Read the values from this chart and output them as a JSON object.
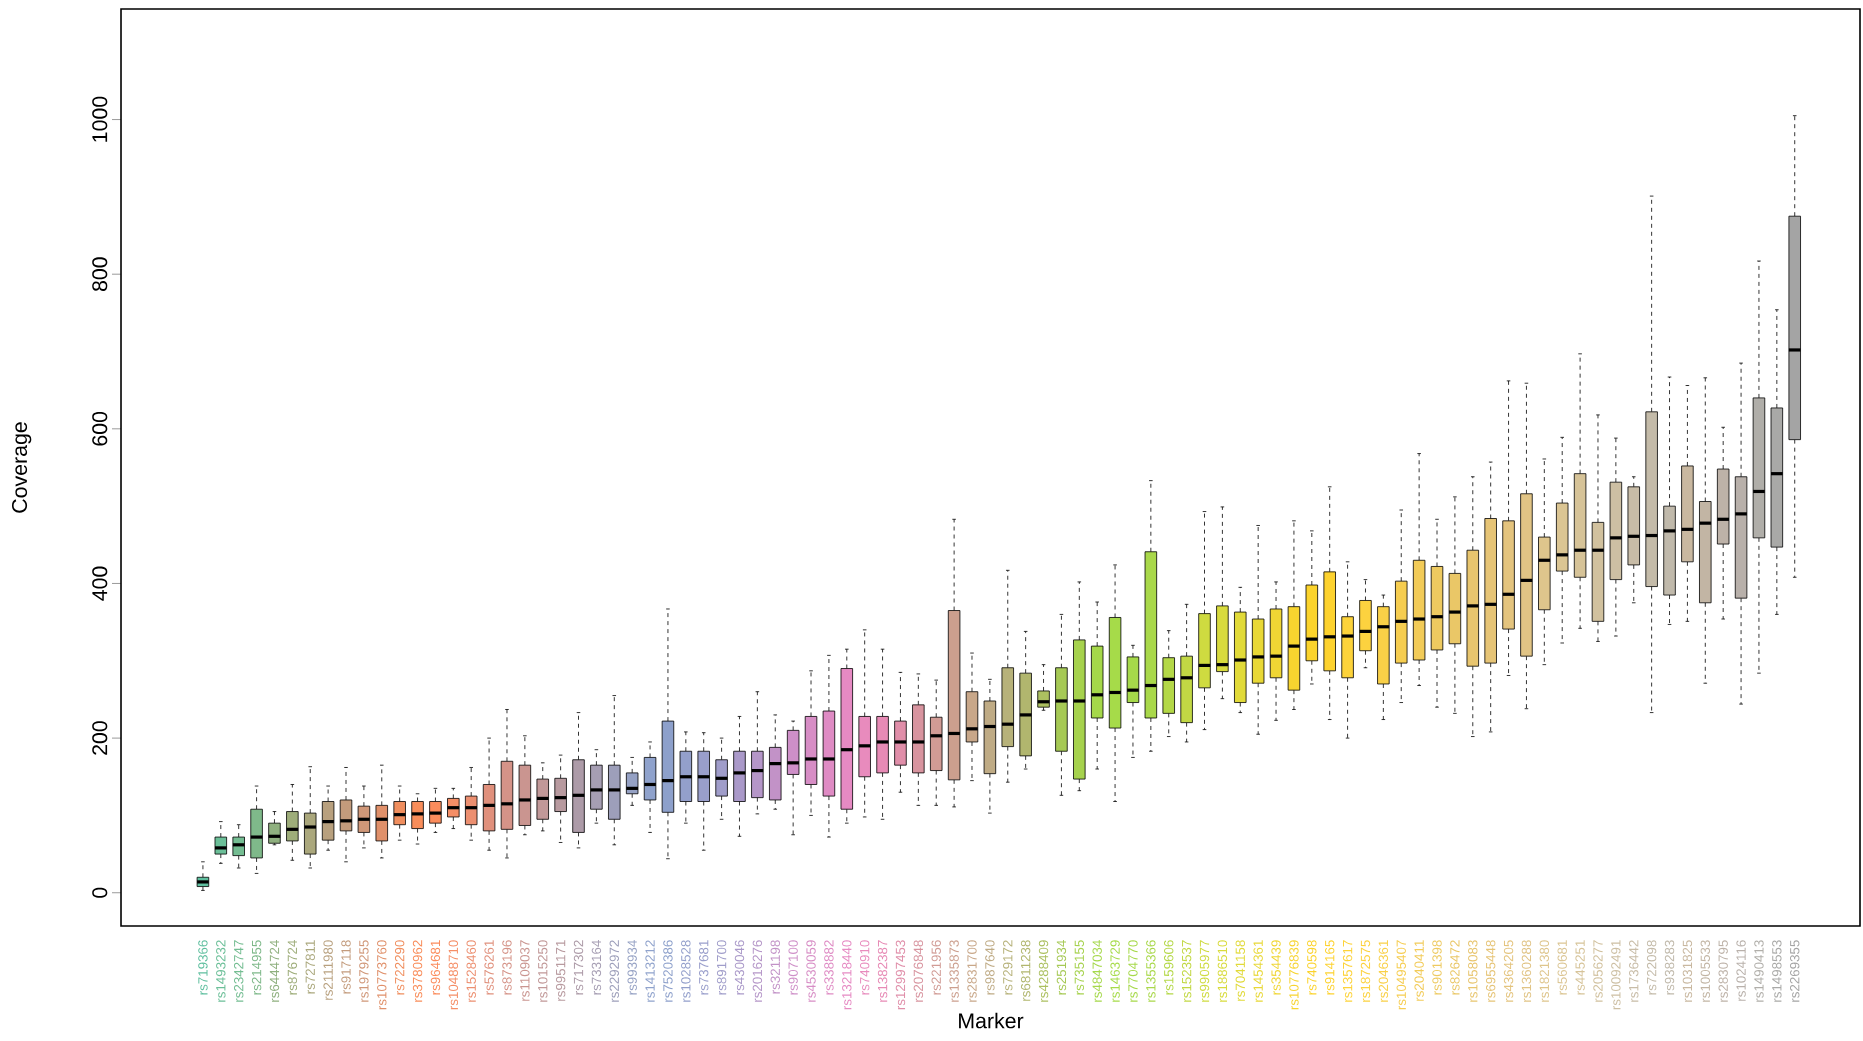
{
  "chart_data": {
    "type": "box",
    "xlabel": "Marker",
    "ylabel": "Coverage",
    "ylim": [
      -43,
      1143
    ],
    "yticks": [
      0,
      200,
      400,
      600,
      800,
      1000
    ],
    "grid": false,
    "categories": [
      "rs719366",
      "rs1493232",
      "rs2342747",
      "rs214955",
      "rs6444724",
      "rs876724",
      "rs727811",
      "rs2111980",
      "rs917118",
      "rs1979255",
      "rs10773760",
      "rs722290",
      "rs3780962",
      "rs964681",
      "rs10488710",
      "rs1528460",
      "rs576261",
      "rs873196",
      "rs1109037",
      "rs1015250",
      "rs9951171",
      "rs717302",
      "rs733164",
      "rs2292972",
      "rs993934",
      "rs1413212",
      "rs7520386",
      "rs1028528",
      "rs737681",
      "rs891700",
      "rs430046",
      "rs2016276",
      "rs321198",
      "rs907100",
      "rs4530059",
      "rs338882",
      "rs13218440",
      "rs740910",
      "rs1382387",
      "rs12997453",
      "rs2076848",
      "rs221956",
      "rs1335873",
      "rs2831700",
      "rs987640",
      "rs729172",
      "rs6811238",
      "rs4288409",
      "rs251934",
      "rs735155",
      "rs4847034",
      "rs1463729",
      "rs7704770",
      "rs1355366",
      "rs159606",
      "rs1523537",
      "rs9905977",
      "rs1886510",
      "rs7041158",
      "rs1454361",
      "rs354439",
      "rs10776839",
      "rs740598",
      "rs914165",
      "rs1357617",
      "rs1872575",
      "rs2046361",
      "rs10495407",
      "rs2040411",
      "rs901398",
      "rs826472",
      "rs1058083",
      "rs6955448",
      "rs4364205",
      "rs1360288",
      "rs1821380",
      "rs560681",
      "rs445251",
      "rs2056277",
      "rs10092491",
      "rs1736442",
      "rs722098",
      "rs938283",
      "rs1031825",
      "rs1005533",
      "rs2830795",
      "rs1024116",
      "rs1490413",
      "rs1498553",
      "rs2269355"
    ],
    "colors": [
      "#5fbf9f",
      "#6bbf98",
      "#74bd92",
      "#7fb98a",
      "#8fb07f",
      "#9ead7a",
      "#aaa77c",
      "#b8a07e",
      "#c39b7c",
      "#d09778",
      "#e0906a",
      "#f08e5e",
      "#f98d5a",
      "#fb8c5c",
      "#f58e66",
      "#ec8f70",
      "#e0907c",
      "#d59388",
      "#ca9590",
      "#c19898",
      "#b89a9f",
      "#ad9ba8",
      "#a69eb3",
      "#9d9fba",
      "#95a1c4",
      "#8fa2cc",
      "#8da0cb",
      "#939fcb",
      "#999ecb",
      "#a09dca",
      "#aa99c9",
      "#b596c8",
      "#c292c7",
      "#ce8fc8",
      "#d78dc5",
      "#df8bc4",
      "#e68ac3",
      "#e88bbd",
      "#e78ab5",
      "#e08ea9",
      "#d8949f",
      "#d19b95",
      "#cc9f8e",
      "#c8a789",
      "#bfab85",
      "#b7b27a",
      "#b1b66e",
      "#acc060",
      "#a6c955",
      "#a6d24d",
      "#a5d84a",
      "#a6db49",
      "#a6d94a",
      "#a9d84a",
      "#b4d847",
      "#c2d844",
      "#cfdb40",
      "#d8db3d",
      "#e1da39",
      "#e8d836",
      "#f0d634",
      "#f7d42f",
      "#fbd32c",
      "#fdd22e",
      "#fdd33a",
      "#fcd23f",
      "#f9d047",
      "#f6cd50",
      "#f2cb58",
      "#eeca60",
      "#eac767",
      "#e8c56e",
      "#e6c476",
      "#e4c47e",
      "#e1c485",
      "#dec58c",
      "#dbc593",
      "#d6c398",
      "#d1c19e",
      "#cdbfa3",
      "#c8bca7",
      "#c4bba9",
      "#c0b9ab",
      "#c9b8a0",
      "#c2b5a4",
      "#bdb2a8",
      "#b8b0aa",
      "#b0aea9",
      "#a9a9a7",
      "#a4a4a4"
    ],
    "boxes": [
      {
        "low": 3,
        "q1": 8,
        "median": 14,
        "q3": 20,
        "high": 40
      },
      {
        "low": 38,
        "q1": 50,
        "median": 58,
        "q3": 72,
        "high": 92
      },
      {
        "low": 32,
        "q1": 48,
        "median": 62,
        "q3": 72,
        "high": 88
      },
      {
        "low": 25,
        "q1": 45,
        "median": 72,
        "q3": 108,
        "high": 138
      },
      {
        "low": 62,
        "q1": 64,
        "median": 73,
        "q3": 90,
        "high": 105
      },
      {
        "low": 42,
        "q1": 67,
        "median": 82,
        "q3": 105,
        "high": 140
      },
      {
        "low": 32,
        "q1": 50,
        "median": 85,
        "q3": 103,
        "high": 163
      },
      {
        "low": 55,
        "q1": 68,
        "median": 92,
        "q3": 118,
        "high": 138
      },
      {
        "low": 40,
        "q1": 80,
        "median": 93,
        "q3": 120,
        "high": 162
      },
      {
        "low": 58,
        "q1": 78,
        "median": 95,
        "q3": 112,
        "high": 138
      },
      {
        "low": 45,
        "q1": 67,
        "median": 95,
        "q3": 113,
        "high": 165
      },
      {
        "low": 68,
        "q1": 88,
        "median": 101,
        "q3": 118,
        "high": 138
      },
      {
        "low": 63,
        "q1": 83,
        "median": 102,
        "q3": 118,
        "high": 128
      },
      {
        "low": 78,
        "q1": 90,
        "median": 103,
        "q3": 118,
        "high": 135
      },
      {
        "low": 83,
        "q1": 98,
        "median": 110,
        "q3": 122,
        "high": 135
      },
      {
        "low": 68,
        "q1": 88,
        "median": 110,
        "q3": 125,
        "high": 162
      },
      {
        "low": 55,
        "q1": 80,
        "median": 113,
        "q3": 140,
        "high": 200
      },
      {
        "low": 45,
        "q1": 82,
        "median": 115,
        "q3": 170,
        "high": 237
      },
      {
        "low": 75,
        "q1": 87,
        "median": 120,
        "q3": 165,
        "high": 203
      },
      {
        "low": 80,
        "q1": 95,
        "median": 122,
        "q3": 147,
        "high": 168
      },
      {
        "low": 65,
        "q1": 105,
        "median": 123,
        "q3": 148,
        "high": 178
      },
      {
        "low": 58,
        "q1": 78,
        "median": 126,
        "q3": 172,
        "high": 233
      },
      {
        "low": 90,
        "q1": 108,
        "median": 133,
        "q3": 165,
        "high": 185
      },
      {
        "low": 62,
        "q1": 95,
        "median": 133,
        "q3": 165,
        "high": 255
      },
      {
        "low": 113,
        "q1": 128,
        "median": 135,
        "q3": 155,
        "high": 175
      },
      {
        "low": 78,
        "q1": 120,
        "median": 140,
        "q3": 175,
        "high": 195
      },
      {
        "low": 44,
        "q1": 104,
        "median": 145,
        "q3": 222,
        "high": 367
      },
      {
        "low": 90,
        "q1": 118,
        "median": 150,
        "q3": 183,
        "high": 208
      },
      {
        "low": 55,
        "q1": 118,
        "median": 150,
        "q3": 183,
        "high": 207
      },
      {
        "low": 95,
        "q1": 125,
        "median": 148,
        "q3": 172,
        "high": 200
      },
      {
        "low": 73,
        "q1": 118,
        "median": 155,
        "q3": 183,
        "high": 228
      },
      {
        "low": 102,
        "q1": 123,
        "median": 158,
        "q3": 183,
        "high": 260
      },
      {
        "low": 108,
        "q1": 120,
        "median": 167,
        "q3": 188,
        "high": 230
      },
      {
        "low": 75,
        "q1": 153,
        "median": 168,
        "q3": 210,
        "high": 222
      },
      {
        "low": 100,
        "q1": 140,
        "median": 173,
        "q3": 228,
        "high": 287
      },
      {
        "low": 72,
        "q1": 125,
        "median": 173,
        "q3": 235,
        "high": 307
      },
      {
        "low": 90,
        "q1": 108,
        "median": 185,
        "q3": 290,
        "high": 315
      },
      {
        "low": 98,
        "q1": 150,
        "median": 190,
        "q3": 228,
        "high": 340
      },
      {
        "low": 95,
        "q1": 155,
        "median": 195,
        "q3": 228,
        "high": 315
      },
      {
        "low": 130,
        "q1": 165,
        "median": 195,
        "q3": 222,
        "high": 285
      },
      {
        "low": 113,
        "q1": 155,
        "median": 195,
        "q3": 243,
        "high": 283
      },
      {
        "low": 113,
        "q1": 158,
        "median": 203,
        "q3": 227,
        "high": 275
      },
      {
        "low": 111,
        "q1": 146,
        "median": 206,
        "q3": 365,
        "high": 483
      },
      {
        "low": 145,
        "q1": 195,
        "median": 212,
        "q3": 260,
        "high": 310
      },
      {
        "low": 103,
        "q1": 154,
        "median": 215,
        "q3": 248,
        "high": 276
      },
      {
        "low": 143,
        "q1": 189,
        "median": 218,
        "q3": 291,
        "high": 417
      },
      {
        "low": 160,
        "q1": 177,
        "median": 230,
        "q3": 284,
        "high": 338
      },
      {
        "low": 236,
        "q1": 240,
        "median": 247,
        "q3": 261,
        "high": 295
      },
      {
        "low": 126,
        "q1": 183,
        "median": 248,
        "q3": 291,
        "high": 360
      },
      {
        "low": 132,
        "q1": 147,
        "median": 248,
        "q3": 327,
        "high": 402
      },
      {
        "low": 160,
        "q1": 226,
        "median": 256,
        "q3": 319,
        "high": 376
      },
      {
        "low": 118,
        "q1": 213,
        "median": 259,
        "q3": 356,
        "high": 424
      },
      {
        "low": 175,
        "q1": 246,
        "median": 262,
        "q3": 305,
        "high": 320
      },
      {
        "low": 183,
        "q1": 226,
        "median": 268,
        "q3": 441,
        "high": 533
      },
      {
        "low": 202,
        "q1": 232,
        "median": 276,
        "q3": 304,
        "high": 339
      },
      {
        "low": 195,
        "q1": 220,
        "median": 278,
        "q3": 306,
        "high": 373
      },
      {
        "low": 211,
        "q1": 265,
        "median": 294,
        "q3": 361,
        "high": 493
      },
      {
        "low": 251,
        "q1": 286,
        "median": 295,
        "q3": 371,
        "high": 499
      },
      {
        "low": 233,
        "q1": 246,
        "median": 301,
        "q3": 363,
        "high": 395
      },
      {
        "low": 205,
        "q1": 271,
        "median": 305,
        "q3": 354,
        "high": 475
      },
      {
        "low": 223,
        "q1": 278,
        "median": 306,
        "q3": 367,
        "high": 402
      },
      {
        "low": 237,
        "q1": 262,
        "median": 319,
        "q3": 370,
        "high": 481
      },
      {
        "low": 270,
        "q1": 300,
        "median": 328,
        "q3": 398,
        "high": 468
      },
      {
        "low": 224,
        "q1": 287,
        "median": 331,
        "q3": 415,
        "high": 525
      },
      {
        "low": 200,
        "q1": 278,
        "median": 332,
        "q3": 357,
        "high": 428
      },
      {
        "low": 291,
        "q1": 313,
        "median": 338,
        "q3": 378,
        "high": 405
      },
      {
        "low": 224,
        "q1": 270,
        "median": 344,
        "q3": 370,
        "high": 385
      },
      {
        "low": 246,
        "q1": 297,
        "median": 351,
        "q3": 403,
        "high": 495
      },
      {
        "low": 268,
        "q1": 301,
        "median": 354,
        "q3": 430,
        "high": 568
      },
      {
        "low": 240,
        "q1": 314,
        "median": 357,
        "q3": 422,
        "high": 483
      },
      {
        "low": 232,
        "q1": 322,
        "median": 363,
        "q3": 413,
        "high": 512
      },
      {
        "low": 202,
        "q1": 293,
        "median": 371,
        "q3": 443,
        "high": 538
      },
      {
        "low": 208,
        "q1": 297,
        "median": 373,
        "q3": 484,
        "high": 557
      },
      {
        "low": 281,
        "q1": 341,
        "median": 386,
        "q3": 481,
        "high": 662
      },
      {
        "low": 238,
        "q1": 306,
        "median": 404,
        "q3": 516,
        "high": 659
      },
      {
        "low": 295,
        "q1": 366,
        "median": 430,
        "q3": 460,
        "high": 561
      },
      {
        "low": 323,
        "q1": 416,
        "median": 437,
        "q3": 504,
        "high": 589
      },
      {
        "low": 342,
        "q1": 408,
        "median": 443,
        "q3": 542,
        "high": 697
      },
      {
        "low": 325,
        "q1": 351,
        "median": 443,
        "q3": 479,
        "high": 618
      },
      {
        "low": 332,
        "q1": 405,
        "median": 459,
        "q3": 531,
        "high": 588
      },
      {
        "low": 375,
        "q1": 424,
        "median": 461,
        "q3": 525,
        "high": 538
      },
      {
        "low": 233,
        "q1": 396,
        "median": 462,
        "q3": 622,
        "high": 901
      },
      {
        "low": 347,
        "q1": 385,
        "median": 468,
        "q3": 500,
        "high": 667
      },
      {
        "low": 351,
        "q1": 428,
        "median": 470,
        "q3": 552,
        "high": 656
      },
      {
        "low": 271,
        "q1": 375,
        "median": 478,
        "q3": 506,
        "high": 666
      },
      {
        "low": 354,
        "q1": 451,
        "median": 483,
        "q3": 548,
        "high": 602
      },
      {
        "low": 244,
        "q1": 381,
        "median": 490,
        "q3": 538,
        "high": 685
      },
      {
        "low": 284,
        "q1": 459,
        "median": 519,
        "q3": 640,
        "high": 817
      },
      {
        "low": 360,
        "q1": 447,
        "median": 542,
        "q3": 627,
        "high": 754
      },
      {
        "low": 408,
        "q1": 586,
        "median": 702,
        "q3": 875,
        "high": 1005
      }
    ]
  }
}
